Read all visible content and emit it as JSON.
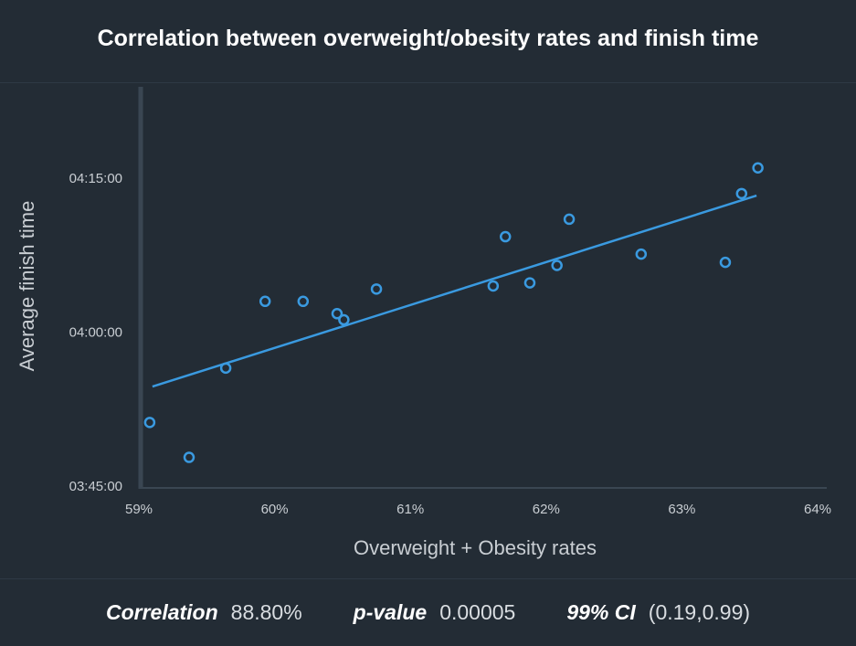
{
  "chart_data": {
    "type": "scatter",
    "title": "Correlation between overweight/obesity rates and finish time",
    "xlabel": "Overweight + Obesity rates",
    "ylabel": "Average finish time",
    "x_tick_labels": [
      "59%",
      "60%",
      "61%",
      "62%",
      "63%",
      "64%"
    ],
    "x_ticks": [
      59,
      60,
      61,
      62,
      63,
      64
    ],
    "y_tick_labels": [
      "03:45:00",
      "04:00:00",
      "04:15:00"
    ],
    "y_ticks_minutes": [
      225,
      240,
      255
    ],
    "xlim": [
      59,
      64
    ],
    "ylim_minutes": [
      225,
      262
    ],
    "points": [
      {
        "x": 59.08,
        "y": 231.2
      },
      {
        "x": 59.37,
        "y": 227.8
      },
      {
        "x": 59.64,
        "y": 236.5
      },
      {
        "x": 59.93,
        "y": 243.0
      },
      {
        "x": 60.21,
        "y": 243.0
      },
      {
        "x": 60.46,
        "y": 241.8
      },
      {
        "x": 60.51,
        "y": 241.2
      },
      {
        "x": 60.75,
        "y": 244.2
      },
      {
        "x": 61.61,
        "y": 244.5
      },
      {
        "x": 61.7,
        "y": 249.3
      },
      {
        "x": 61.88,
        "y": 244.8
      },
      {
        "x": 62.08,
        "y": 246.5
      },
      {
        "x": 62.17,
        "y": 251.0
      },
      {
        "x": 62.7,
        "y": 247.6
      },
      {
        "x": 63.32,
        "y": 246.8
      },
      {
        "x": 63.44,
        "y": 253.5
      },
      {
        "x": 63.56,
        "y": 256.0
      }
    ],
    "trendline": [
      {
        "x": 59.1,
        "y": 234.7
      },
      {
        "x": 63.55,
        "y": 253.3
      }
    ],
    "colors": {
      "points": "#3a9ae0",
      "trendline": "#3a9ae0",
      "axis": "#3a4652",
      "text": "#c9ced3"
    }
  },
  "stats": {
    "correlation_label": "Correlation",
    "correlation_value": "88.80%",
    "pvalue_label": "p-value",
    "pvalue_value": "0.00005",
    "ci_label": "99% CI",
    "ci_value": "(0.19,0.99)"
  }
}
